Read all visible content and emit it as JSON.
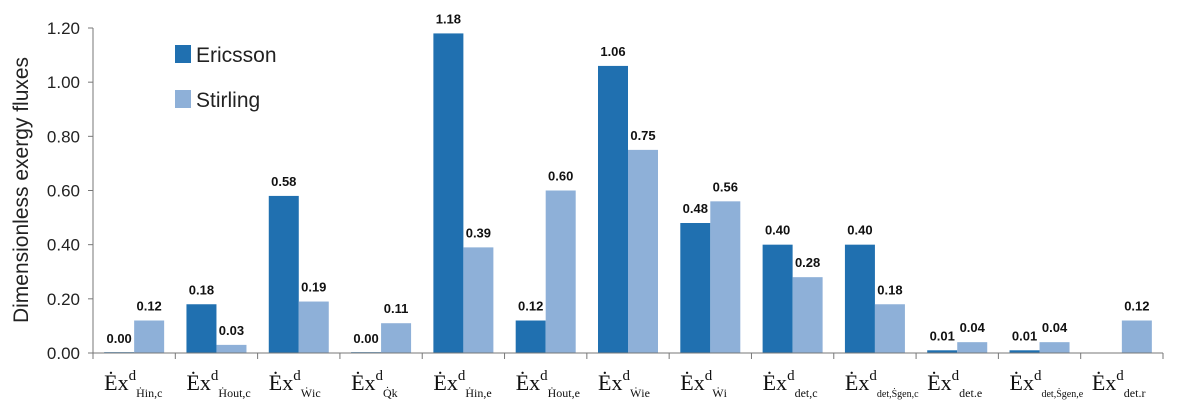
{
  "chart_data": {
    "type": "bar",
    "ylabel": "Dimensionless exergy fluxes",
    "ylim": [
      0,
      1.2
    ],
    "yticks": [
      "0.00",
      "0.20",
      "0.40",
      "0.60",
      "0.80",
      "1.00",
      "1.20"
    ],
    "legend_position": "top-left",
    "categories": [
      {
        "base": "Ėx",
        "sup": "d",
        "sub": "Ḣin,c"
      },
      {
        "base": "Ėx",
        "sup": "d",
        "sub": "Ḣout,c"
      },
      {
        "base": "Ėx",
        "sup": "d",
        "sub": "Ẇic"
      },
      {
        "base": "Ėx",
        "sup": "d",
        "sub": "Q̇k"
      },
      {
        "base": "Ėx",
        "sup": "d",
        "sub": "Ḣin,e"
      },
      {
        "base": "Ėx",
        "sup": "d",
        "sub": "Ḣout,e"
      },
      {
        "base": "Ėx",
        "sup": "d",
        "sub": "Ẇie"
      },
      {
        "base": "Ėx",
        "sup": "d",
        "sub": "Ẇi"
      },
      {
        "base": "Ėx",
        "sup": "d",
        "sub": "det,c"
      },
      {
        "base": "Ėx",
        "sup": "d",
        "sub": "det,Ṡgen,c"
      },
      {
        "base": "Ėx",
        "sup": "d",
        "sub": "det.e"
      },
      {
        "base": "Ėx",
        "sup": "d",
        "sub": "det,Ṡgen,e"
      },
      {
        "base": "Ėx",
        "sup": "d",
        "sub": "det.r"
      }
    ],
    "series": [
      {
        "name": "Ericsson",
        "color": "#2070b0",
        "values": [
          0.0,
          0.18,
          0.58,
          0.0,
          1.18,
          0.12,
          1.06,
          0.48,
          0.4,
          0.4,
          0.01,
          0.01,
          null
        ],
        "labels": [
          "0.00",
          "0.18",
          "0.58",
          "0.00",
          "1.18",
          "0.12",
          "1.06",
          "0.48",
          "0.40",
          "0.40",
          "0.01",
          "0.01",
          ""
        ]
      },
      {
        "name": "Stirling",
        "color": "#8eb0d8",
        "values": [
          0.12,
          0.03,
          0.19,
          0.11,
          0.39,
          0.6,
          0.75,
          0.56,
          0.28,
          0.18,
          0.04,
          0.04,
          0.12
        ],
        "labels": [
          "0.12",
          "0.03",
          "0.19",
          "0.11",
          "0.39",
          "0.60",
          "0.75",
          "0.56",
          "0.28",
          "0.18",
          "0.04",
          "0.04",
          "0.12"
        ]
      }
    ]
  }
}
